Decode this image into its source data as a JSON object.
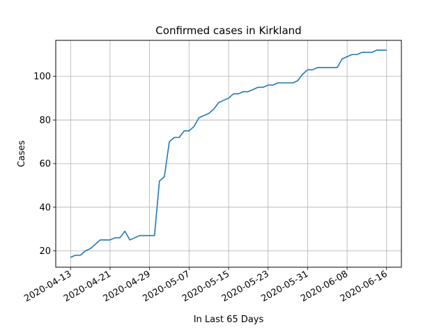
{
  "chart_data": {
    "type": "line",
    "title": "Confirmed cases in Kirkland",
    "xlabel": "In Last 65 Days",
    "ylabel": "Cases",
    "ylim": [
      12.5,
      116.5
    ],
    "xlim": [
      "2020-04-10",
      "2020-06-19"
    ],
    "grid": true,
    "line_color": "#1f77b4",
    "x_ticks": [
      "2020-04-13",
      "2020-04-21",
      "2020-04-29",
      "2020-05-07",
      "2020-05-15",
      "2020-05-23",
      "2020-05-31",
      "2020-06-08",
      "2020-06-16"
    ],
    "y_ticks": [
      20,
      40,
      60,
      80,
      100
    ],
    "series": [
      {
        "x": [
          "2020-04-13",
          "2020-04-14",
          "2020-04-15",
          "2020-04-16",
          "2020-04-17",
          "2020-04-18",
          "2020-04-19",
          "2020-04-20",
          "2020-04-21",
          "2020-04-22",
          "2020-04-23",
          "2020-04-24",
          "2020-04-25",
          "2020-04-26",
          "2020-04-27",
          "2020-04-28",
          "2020-04-29",
          "2020-04-30",
          "2020-05-01",
          "2020-05-02",
          "2020-05-03",
          "2020-05-04",
          "2020-05-05",
          "2020-05-06",
          "2020-05-07",
          "2020-05-08",
          "2020-05-09",
          "2020-05-10",
          "2020-05-11",
          "2020-05-12",
          "2020-05-13",
          "2020-05-14",
          "2020-05-15",
          "2020-05-16",
          "2020-05-17",
          "2020-05-18",
          "2020-05-19",
          "2020-05-20",
          "2020-05-21",
          "2020-05-22",
          "2020-05-23",
          "2020-05-24",
          "2020-05-25",
          "2020-05-26",
          "2020-05-27",
          "2020-05-28",
          "2020-05-29",
          "2020-05-30",
          "2020-05-31",
          "2020-06-01",
          "2020-06-02",
          "2020-06-03",
          "2020-06-04",
          "2020-06-05",
          "2020-06-06",
          "2020-06-07",
          "2020-06-08",
          "2020-06-09",
          "2020-06-10",
          "2020-06-11",
          "2020-06-12",
          "2020-06-13",
          "2020-06-14",
          "2020-06-15",
          "2020-06-16"
        ],
        "values": [
          17,
          18,
          18,
          20,
          21,
          23,
          25,
          25,
          25,
          26,
          26,
          29,
          25,
          26,
          27,
          27,
          27,
          27,
          52,
          54,
          70,
          72,
          72,
          75,
          75,
          77,
          81,
          82,
          83,
          85,
          88,
          89,
          90,
          92,
          92,
          93,
          93,
          94,
          95,
          95,
          96,
          96,
          97,
          97,
          97,
          97,
          98,
          101,
          103,
          103,
          104,
          104,
          104,
          104,
          104,
          108,
          109,
          110,
          110,
          111,
          111,
          111,
          112,
          112,
          112
        ]
      }
    ]
  }
}
